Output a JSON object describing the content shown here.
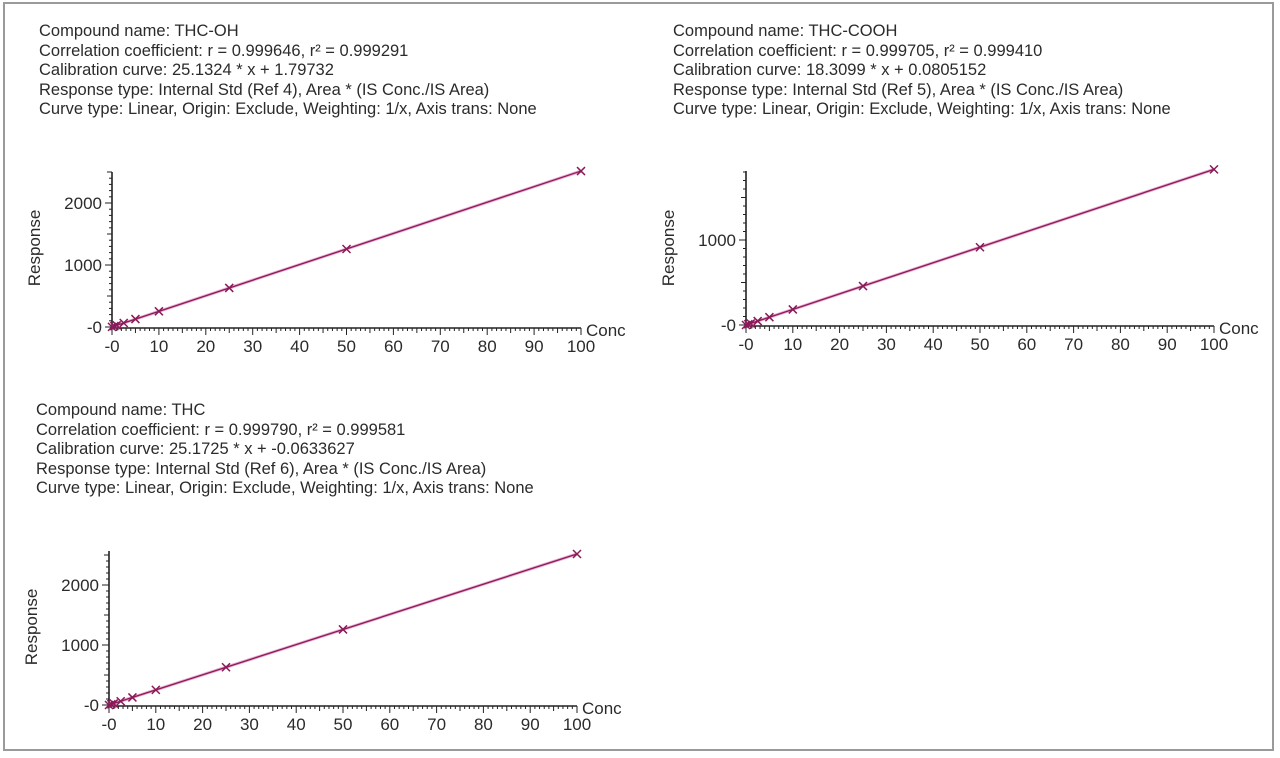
{
  "panels": [
    {
      "compound_label": "Compound name: THC-OH",
      "correlation_label": "Correlation coefficient: r = 0.999646, r² = 0.999291",
      "calibration_label": "Calibration curve: 25.1324 * x + 1.79732",
      "response_type_label": "Response type: Internal Std (Ref 4), Area * (IS Conc./IS Area)",
      "curve_type_label": "Curve type: Linear, Origin: Exclude, Weighting: 1/x, Axis trans: None",
      "y_axis_label": "Response",
      "x_axis_label": "Conc"
    },
    {
      "compound_label": "Compound name: THC-COOH",
      "correlation_label": "Correlation coefficient: r = 0.999705, r² = 0.999410",
      "calibration_label": "Calibration curve: 18.3099 * x + 0.0805152",
      "response_type_label": "Response type: Internal Std (Ref 5), Area * (IS Conc./IS Area)",
      "curve_type_label": "Curve type: Linear, Origin: Exclude, Weighting: 1/x, Axis trans: None",
      "y_axis_label": "Response",
      "x_axis_label": "Conc"
    },
    {
      "compound_label": "Compound name: THC",
      "correlation_label": "Correlation coefficient: r = 0.999790, r² = 0.999581",
      "calibration_label": "Calibration curve: 25.1725 * x + -0.0633627",
      "response_type_label": "Response type: Internal Std (Ref 6), Area * (IS Conc./IS Area)",
      "curve_type_label": "Curve type: Linear, Origin: Exclude, Weighting: 1/x, Axis trans: None",
      "y_axis_label": "Response",
      "x_axis_label": "Conc"
    }
  ],
  "colors": {
    "series": "#8a1a58",
    "series_halo": "#e9a9cf",
    "axis": "#222222",
    "border": "#9a9a9a"
  },
  "chart_data": [
    {
      "type": "scatter",
      "title": "Compound name: THC-OH",
      "xlabel": "Conc",
      "ylabel": "Response",
      "xlim": [
        0,
        100
      ],
      "ylim": [
        0,
        2400
      ],
      "x_ticks": [
        "-0",
        "10",
        "20",
        "30",
        "40",
        "50",
        "60",
        "70",
        "80",
        "90",
        "100"
      ],
      "y_ticks": [
        "-0",
        "1000",
        "2000"
      ],
      "fit": {
        "slope": 25.1324,
        "intercept": 1.79732,
        "r": 0.999646,
        "r2": 0.999291
      },
      "x": [
        0,
        0.5,
        1,
        2.5,
        5,
        10,
        25,
        50,
        100
      ],
      "values": [
        2,
        14,
        27,
        64,
        128,
        253,
        630,
        1258,
        2515
      ],
      "grid": false
    },
    {
      "type": "scatter",
      "title": "Compound name: THC-COOH",
      "xlabel": "Conc",
      "ylabel": "Response",
      "xlim": [
        0,
        100
      ],
      "ylim": [
        0,
        1800
      ],
      "x_ticks": [
        "-0",
        "10",
        "20",
        "30",
        "40",
        "50",
        "60",
        "70",
        "80",
        "90",
        "100"
      ],
      "y_ticks": [
        "-0",
        "1000"
      ],
      "fit": {
        "slope": 18.3099,
        "intercept": 0.0805152,
        "r": 0.999705,
        "r2": 0.99941
      },
      "x": [
        0,
        0.5,
        1,
        2.5,
        5,
        10,
        25,
        50,
        100
      ],
      "values": [
        0,
        9,
        18,
        46,
        92,
        183,
        458,
        915,
        1831
      ],
      "grid": false
    },
    {
      "type": "scatter",
      "title": "Compound name: THC",
      "xlabel": "Conc",
      "ylabel": "Response",
      "xlim": [
        0,
        100
      ],
      "ylim": [
        0,
        2550
      ],
      "x_ticks": [
        "-0",
        "10",
        "20",
        "30",
        "40",
        "50",
        "60",
        "70",
        "80",
        "90",
        "100"
      ],
      "y_ticks": [
        "-0",
        "1000",
        "2000"
      ],
      "fit": {
        "slope": 25.1725,
        "intercept": -0.0633627,
        "r": 0.99979,
        "r2": 0.999581
      },
      "x": [
        0,
        0.5,
        1,
        2.5,
        5,
        10,
        25,
        50,
        100
      ],
      "values": [
        0,
        13,
        25,
        63,
        126,
        252,
        629,
        1259,
        2517
      ],
      "grid": false
    }
  ]
}
